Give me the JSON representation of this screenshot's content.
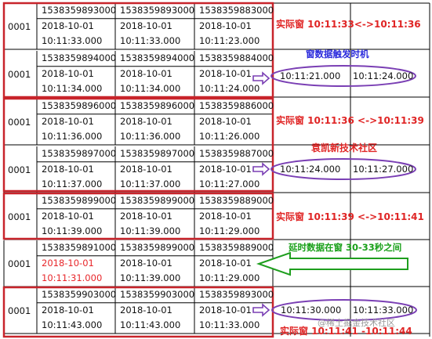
{
  "rows": [
    {
      "id": "0001",
      "cols": [
        [
          "1538359893000",
          "2018-10-01",
          "10:11:33.000"
        ],
        [
          "1538359893000",
          "2018-10-01",
          "10:11:33.000"
        ],
        [
          "1538359883000",
          "2018-10-01",
          "10:11:23.000"
        ]
      ]
    },
    {
      "id": "0001",
      "cols": [
        [
          "1538359894000",
          "2018-10-01",
          "10:11:34.000"
        ],
        [
          "1538359894000",
          "2018-10-01",
          "10:11:34.000"
        ],
        [
          "1538359884000",
          "2018-10-01",
          "10:11:24.000"
        ]
      ]
    },
    {
      "id": "0001",
      "cols": [
        [
          "1538359896000",
          "2018-10-01",
          "10:11:36.000"
        ],
        [
          "1538359896000",
          "2018-10-01",
          "10:11:36.000"
        ],
        [
          "1538359886000",
          "2018-10-01",
          "10:11:26.000"
        ]
      ]
    },
    {
      "id": "0001",
      "cols": [
        [
          "1538359897000",
          "2018-10-01",
          "10:11:37.000"
        ],
        [
          "1538359897000",
          "2018-10-01",
          "10:11:37.000"
        ],
        [
          "1538359887000",
          "2018-10-01",
          "10:11:27.000"
        ]
      ]
    },
    {
      "id": "0001",
      "cols": [
        [
          "1538359899000",
          "2018-10-01",
          "10:11:39.000"
        ],
        [
          "1538359899000",
          "2018-10-01",
          "10:11:39.000"
        ],
        [
          "1538359889000",
          "2018-10-01",
          "10:11:29.000"
        ]
      ]
    },
    {
      "id": "0001",
      "cols": [
        [
          "1538359891000",
          "2018-10-01",
          "10:11:31.000"
        ],
        [
          "1538359899000",
          "2018-10-01",
          "10:11:39.000"
        ],
        [
          "1538359889000",
          "2018-10-01",
          "10:11:29.000"
        ]
      ]
    },
    {
      "id": "0001",
      "cols": [
        [
          "1538359903000",
          "2018-10-01",
          "10:11:43.000"
        ],
        [
          "1538359903000",
          "2018-10-01",
          "10:11:43.000"
        ],
        [
          "1538359893000",
          "2018-10-01",
          "10:11:33.000"
        ]
      ]
    }
  ],
  "highlight_color": "#e8262a",
  "annotations": {
    "window1": "实际窗 10:11:33<->10:11:36",
    "trigger": "窗数据触发时机",
    "trigger_range_start": "10:11:21.000",
    "trigger_range_end": "10:11:24.000",
    "window2": "实际窗 10:11:36 <->10:11:39",
    "community": "袁凯新技术社区",
    "range2_start": "10:11:24.000",
    "range2_end": "10:11:27.000",
    "window3": "实际窗 10:11:39 <->10:11:41",
    "late": "延时数据在窗 30-33秒之间",
    "range3_start": "10:11:30.000",
    "range3_end": "10:11:33.000",
    "window4": "实际窗 10:11:41 -10:11:44",
    "watermark": "@稀土掘金技术社区"
  }
}
